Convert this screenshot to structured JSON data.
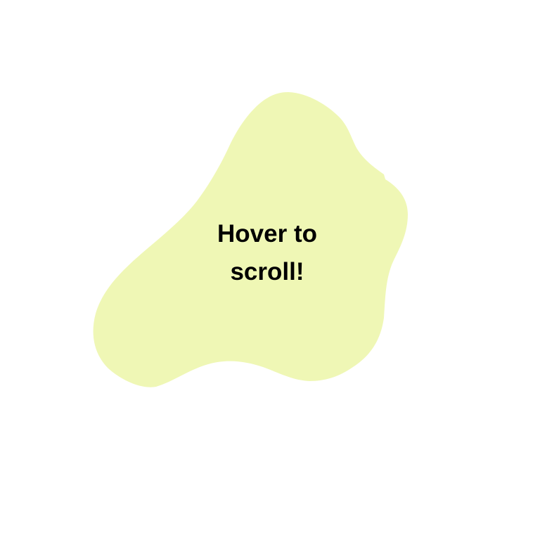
{
  "hover_card": {
    "line1": "Hover to",
    "line2": "scroll!"
  },
  "colors": {
    "background": "#ffffff",
    "blob_fill": "#eff7b5",
    "text": "#000000"
  }
}
